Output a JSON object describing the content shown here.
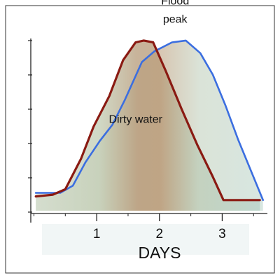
{
  "chart_data": {
    "type": "area",
    "title": "",
    "xlabel": "DAYS",
    "ylabel": "",
    "xlim": [
      -0.05,
      3.72
    ],
    "ylim": [
      0,
      1
    ],
    "x_ticks": [
      1,
      2,
      3
    ],
    "x_tick_labels": [
      "1",
      "2",
      "3"
    ],
    "grid": false,
    "legend": "none",
    "series": [
      {
        "name": "",
        "color": "#8a1a12",
        "x": [
          0.03,
          0.3,
          0.5,
          0.75,
          0.95,
          1.2,
          1.42,
          1.62,
          1.75,
          1.9,
          2.1,
          2.35,
          2.6,
          2.85,
          3.02,
          3.6
        ],
        "y": [
          0.06,
          0.07,
          0.1,
          0.27,
          0.45,
          0.62,
          0.82,
          0.92,
          0.93,
          0.92,
          0.76,
          0.55,
          0.35,
          0.17,
          0.04,
          0.04
        ]
      },
      {
        "name": "",
        "color": "#3b6ee0",
        "x": [
          0.03,
          0.42,
          0.62,
          0.82,
          1.05,
          1.25,
          1.45,
          1.72,
          1.92,
          2.2,
          2.42,
          2.65,
          2.85,
          3.05,
          3.25,
          3.45,
          3.65
        ],
        "y": [
          0.08,
          0.08,
          0.12,
          0.25,
          0.37,
          0.46,
          0.6,
          0.81,
          0.87,
          0.92,
          0.93,
          0.86,
          0.74,
          0.57,
          0.38,
          0.21,
          0.04
        ]
      }
    ],
    "annotations": [
      {
        "text": "Flood",
        "x": 2.25,
        "y": 1.13
      },
      {
        "text": "peak",
        "x": 2.25,
        "y": 1.03
      },
      {
        "text": "Dirty water",
        "x": 1.62,
        "y": 0.47
      }
    ]
  }
}
